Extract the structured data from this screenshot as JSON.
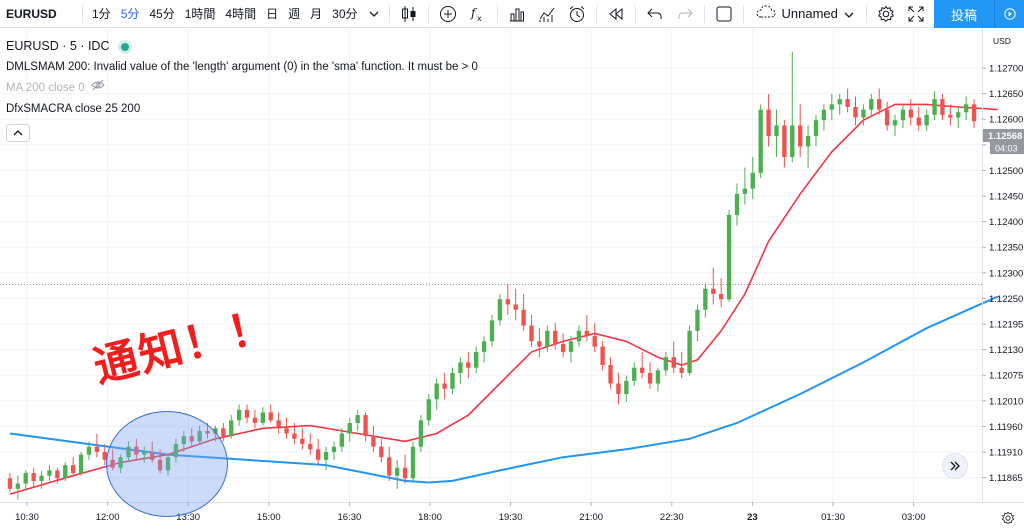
{
  "toolbar": {
    "symbol": "EURUSD",
    "intervals": [
      {
        "label": "1分",
        "active": false
      },
      {
        "label": "5分",
        "active": true
      },
      {
        "label": "45分",
        "active": false
      },
      {
        "label": "1時間",
        "active": false
      },
      {
        "label": "4時間",
        "active": false
      },
      {
        "label": "日",
        "active": false
      },
      {
        "label": "週",
        "active": false
      },
      {
        "label": "月",
        "active": false
      }
    ],
    "custom_interval": "30分",
    "layout_name": "Unnamed",
    "publish_label": "投稿",
    "icons": [
      "chevron-down-icon",
      "candlestick-icon",
      "add-indicator-icon",
      "fx-icon",
      "bar-chart-icon",
      "compare-icon",
      "alert-clock-icon",
      "replay-icon",
      "undo-icon",
      "redo-icon",
      "fullscreen-rect-icon",
      "cloud-icon",
      "gear-icon",
      "expand-icon",
      "camera-icon",
      "triangle-down-icon"
    ]
  },
  "legend": {
    "symbol_line": "EURUSD · 5 · IDC",
    "indicator_1": "DMLSMAM 200: Invalid value of the 'length' argument (0) in the 'sma' function. It must be > 0",
    "indicator_2": "MA 200 close 0",
    "indicator_3": "DfxSMACRA close 25 200"
  },
  "price_axis": {
    "currency": "USD",
    "labels": [
      "1.12700",
      "1.12650",
      "1.12600",
      "1.12550",
      "1.12500",
      "1.12450",
      "1.12400",
      "1.12350",
      "1.12300",
      "1.12250",
      "1.12195",
      "1.12130",
      "1.12075",
      "1.12010",
      "1.11960",
      "1.11910",
      "1.11865"
    ],
    "current_price": "1.12568",
    "countdown": "04:03"
  },
  "time_axis": {
    "labels": [
      "10:30",
      "12:00",
      "13:30",
      "15:00",
      "16:30",
      "18:00",
      "19:30",
      "21:00",
      "22:30",
      "23",
      "01:30",
      "03:00"
    ]
  },
  "annotation": {
    "text": "通知！！"
  },
  "colors": {
    "up": "#26a69a",
    "up_candle": "#4caf50",
    "down": "#ef5350",
    "ma_short": "#f23645",
    "ma_long": "#2196f3",
    "accent": "#2962ff",
    "annotation": "#f21d1d"
  },
  "chart_data": {
    "type": "candlestick",
    "ylim": [
      1.11845,
      1.12745
    ],
    "price_line": 1.12258,
    "bars": [
      [
        1.1189,
        1.119,
        1.11865,
        1.1187
      ],
      [
        1.1187,
        1.11895,
        1.1185,
        1.1188
      ],
      [
        1.1188,
        1.11905,
        1.1187,
        1.119
      ],
      [
        1.119,
        1.1191,
        1.11875,
        1.11885
      ],
      [
        1.11885,
        1.11905,
        1.1187,
        1.11895
      ],
      [
        1.11895,
        1.11915,
        1.11885,
        1.11905
      ],
      [
        1.11905,
        1.1191,
        1.1188,
        1.1189
      ],
      [
        1.1189,
        1.1192,
        1.11885,
        1.11915
      ],
      [
        1.11915,
        1.1193,
        1.11895,
        1.119
      ],
      [
        1.119,
        1.1194,
        1.11895,
        1.11935
      ],
      [
        1.11935,
        1.1196,
        1.11925,
        1.1195
      ],
      [
        1.1195,
        1.11975,
        1.1193,
        1.1194
      ],
      [
        1.1194,
        1.11955,
        1.11915,
        1.11925
      ],
      [
        1.11925,
        1.11945,
        1.11905,
        1.1191
      ],
      [
        1.1191,
        1.11935,
        1.119,
        1.1193
      ],
      [
        1.1193,
        1.1196,
        1.1192,
        1.1195
      ],
      [
        1.1195,
        1.11965,
        1.11925,
        1.11935
      ],
      [
        1.11935,
        1.1195,
        1.1192,
        1.1194
      ],
      [
        1.1194,
        1.1196,
        1.1192,
        1.11925
      ],
      [
        1.11925,
        1.11945,
        1.119,
        1.11905
      ],
      [
        1.11905,
        1.11935,
        1.11895,
        1.1193
      ],
      [
        1.1193,
        1.11965,
        1.1192,
        1.11955
      ],
      [
        1.11955,
        1.1198,
        1.1194,
        1.1197
      ],
      [
        1.1197,
        1.11985,
        1.1195,
        1.1196
      ],
      [
        1.1196,
        1.1199,
        1.11955,
        1.1198
      ],
      [
        1.1198,
        1.11995,
        1.11965,
        1.11975
      ],
      [
        1.11975,
        1.1199,
        1.1196,
        1.11985
      ],
      [
        1.11985,
        1.11995,
        1.1196,
        1.1197
      ],
      [
        1.1197,
        1.1201,
        1.11965,
        1.12
      ],
      [
        1.12,
        1.1203,
        1.1199,
        1.1202
      ],
      [
        1.1202,
        1.1203,
        1.11995,
        1.12005
      ],
      [
        1.12005,
        1.1202,
        1.11985,
        1.11995
      ],
      [
        1.11995,
        1.12025,
        1.1199,
        1.12015
      ],
      [
        1.12015,
        1.1203,
        1.11995,
        1.12
      ],
      [
        1.12,
        1.12015,
        1.11975,
        1.11985
      ],
      [
        1.11985,
        1.12005,
        1.11965,
        1.11975
      ],
      [
        1.11975,
        1.11995,
        1.11955,
        1.11965
      ],
      [
        1.11965,
        1.11985,
        1.11945,
        1.11955
      ],
      [
        1.11955,
        1.11975,
        1.11935,
        1.11945
      ],
      [
        1.11945,
        1.11965,
        1.11915,
        1.11925
      ],
      [
        1.11925,
        1.1195,
        1.11905,
        1.1194
      ],
      [
        1.1194,
        1.1196,
        1.11925,
        1.1195
      ],
      [
        1.1195,
        1.11985,
        1.1194,
        1.11975
      ],
      [
        1.11975,
        1.12005,
        1.1196,
        1.11995
      ],
      [
        1.11995,
        1.1202,
        1.1198,
        1.1201
      ],
      [
        1.1201,
        1.12015,
        1.1196,
        1.1197
      ],
      [
        1.1197,
        1.1199,
        1.1194,
        1.1195
      ],
      [
        1.1195,
        1.11965,
        1.1192,
        1.1193
      ],
      [
        1.1193,
        1.1195,
        1.11885,
        1.11895
      ],
      [
        1.11895,
        1.11925,
        1.1187,
        1.1191
      ],
      [
        1.1191,
        1.11935,
        1.1188,
        1.1189
      ],
      [
        1.1189,
        1.1196,
        1.11885,
        1.1195
      ],
      [
        1.1195,
        1.1201,
        1.1194,
        1.12
      ],
      [
        1.12,
        1.1205,
        1.1199,
        1.1204
      ],
      [
        1.1204,
        1.1208,
        1.1202,
        1.1207
      ],
      [
        1.1207,
        1.1209,
        1.1204,
        1.1206
      ],
      [
        1.1206,
        1.121,
        1.1205,
        1.1209
      ],
      [
        1.1209,
        1.1212,
        1.1207,
        1.1211
      ],
      [
        1.1211,
        1.1213,
        1.1208,
        1.121
      ],
      [
        1.121,
        1.1214,
        1.1209,
        1.1213
      ],
      [
        1.1213,
        1.1216,
        1.1211,
        1.1215
      ],
      [
        1.1215,
        1.122,
        1.1214,
        1.1219
      ],
      [
        1.1219,
        1.1224,
        1.1218,
        1.1223
      ],
      [
        1.1223,
        1.1226,
        1.122,
        1.1222
      ],
      [
        1.1222,
        1.1225,
        1.1219,
        1.1221
      ],
      [
        1.1221,
        1.1224,
        1.1217,
        1.1218
      ],
      [
        1.1218,
        1.122,
        1.1214,
        1.1215
      ],
      [
        1.1215,
        1.12175,
        1.1212,
        1.1214
      ],
      [
        1.1214,
        1.1218,
        1.1213,
        1.1217
      ],
      [
        1.1217,
        1.12185,
        1.12135,
        1.12145
      ],
      [
        1.12145,
        1.12165,
        1.1212,
        1.1213
      ],
      [
        1.1213,
        1.1216,
        1.1211,
        1.1215
      ],
      [
        1.1215,
        1.1218,
        1.1214,
        1.1217
      ],
      [
        1.1217,
        1.122,
        1.1215,
        1.1216
      ],
      [
        1.1216,
        1.12185,
        1.1213,
        1.1214
      ],
      [
        1.1214,
        1.1215,
        1.12095,
        1.12105
      ],
      [
        1.12105,
        1.1212,
        1.1206,
        1.1207
      ],
      [
        1.1207,
        1.1209,
        1.1203,
        1.1205
      ],
      [
        1.1205,
        1.12085,
        1.12035,
        1.12075
      ],
      [
        1.12075,
        1.1211,
        1.12065,
        1.121
      ],
      [
        1.121,
        1.1213,
        1.1208,
        1.1209
      ],
      [
        1.1209,
        1.1211,
        1.1206,
        1.1207
      ],
      [
        1.1207,
        1.121,
        1.12055,
        1.12095
      ],
      [
        1.12095,
        1.1213,
        1.12085,
        1.1212
      ],
      [
        1.1212,
        1.1215,
        1.1209,
        1.121
      ],
      [
        1.121,
        1.1213,
        1.1208,
        1.1209
      ],
      [
        1.1209,
        1.1218,
        1.12085,
        1.1217
      ],
      [
        1.1217,
        1.1222,
        1.1215,
        1.1221
      ],
      [
        1.1221,
        1.1226,
        1.12195,
        1.1225
      ],
      [
        1.1225,
        1.1229,
        1.1222,
        1.1224
      ],
      [
        1.1224,
        1.1227,
        1.12215,
        1.1223
      ],
      [
        1.1223,
        1.124,
        1.12225,
        1.1239
      ],
      [
        1.1239,
        1.1245,
        1.1237,
        1.1243
      ],
      [
        1.1243,
        1.1248,
        1.1241,
        1.1244
      ],
      [
        1.1244,
        1.125,
        1.1242,
        1.1247
      ],
      [
        1.1247,
        1.126,
        1.1246,
        1.1259
      ],
      [
        1.1259,
        1.1262,
        1.1252,
        1.1254
      ],
      [
        1.1254,
        1.1259,
        1.125,
        1.1256
      ],
      [
        1.1256,
        1.1257,
        1.1248,
        1.125
      ],
      [
        1.125,
        1.127,
        1.1249,
        1.1256
      ],
      [
        1.1256,
        1.126,
        1.125,
        1.1252
      ],
      [
        1.1252,
        1.1256,
        1.1248,
        1.1254
      ],
      [
        1.1254,
        1.1258,
        1.1252,
        1.1257
      ],
      [
        1.1257,
        1.126,
        1.1255,
        1.1259
      ],
      [
        1.1259,
        1.1262,
        1.1257,
        1.126
      ],
      [
        1.126,
        1.1262,
        1.1258,
        1.1261
      ],
      [
        1.1261,
        1.1263,
        1.12585,
        1.12595
      ],
      [
        1.12595,
        1.12615,
        1.1256,
        1.12575
      ],
      [
        1.12575,
        1.126,
        1.1256,
        1.1259
      ],
      [
        1.1259,
        1.1262,
        1.12575,
        1.1261
      ],
      [
        1.1261,
        1.1263,
        1.1258,
        1.1259
      ],
      [
        1.1259,
        1.12605,
        1.1255,
        1.1256
      ],
      [
        1.1256,
        1.1258,
        1.1254,
        1.1257
      ],
      [
        1.1257,
        1.126,
        1.12555,
        1.1259
      ],
      [
        1.1259,
        1.1261,
        1.1256,
        1.12575
      ],
      [
        1.12575,
        1.12595,
        1.1255,
        1.1256
      ],
      [
        1.1256,
        1.1259,
        1.1255,
        1.1258
      ],
      [
        1.1258,
        1.12625,
        1.1257,
        1.1261
      ],
      [
        1.1261,
        1.1262,
        1.1257,
        1.1258
      ],
      [
        1.1258,
        1.126,
        1.1256,
        1.12575
      ],
      [
        1.12575,
        1.12595,
        1.12555,
        1.12585
      ],
      [
        1.12585,
        1.12615,
        1.1257,
        1.126
      ],
      [
        1.126,
        1.1261,
        1.12555,
        1.12568
      ]
    ],
    "ma_short": [
      [
        0,
        1.1186
      ],
      [
        8,
        1.11895
      ],
      [
        14,
        1.1192
      ],
      [
        20,
        1.11935
      ],
      [
        26,
        1.11965
      ],
      [
        32,
        1.11985
      ],
      [
        38,
        1.1199
      ],
      [
        44,
        1.11975
      ],
      [
        50,
        1.1196
      ],
      [
        54,
        1.11975
      ],
      [
        58,
        1.1201
      ],
      [
        62,
        1.1207
      ],
      [
        66,
        1.1213
      ],
      [
        70,
        1.1215
      ],
      [
        74,
        1.12165
      ],
      [
        78,
        1.1215
      ],
      [
        82,
        1.1212
      ],
      [
        85,
        1.12105
      ],
      [
        87,
        1.12115
      ],
      [
        90,
        1.1217
      ],
      [
        93,
        1.1224
      ],
      [
        96,
        1.1234
      ],
      [
        100,
        1.1243
      ],
      [
        104,
        1.1251
      ],
      [
        108,
        1.1257
      ],
      [
        112,
        1.126
      ],
      [
        116,
        1.126
      ],
      [
        120,
        1.12595
      ],
      [
        125,
        1.1259
      ]
    ],
    "ma_long": [
      [
        0,
        1.11975
      ],
      [
        10,
        1.11955
      ],
      [
        20,
        1.11935
      ],
      [
        30,
        1.11925
      ],
      [
        40,
        1.11915
      ],
      [
        45,
        1.119
      ],
      [
        50,
        1.11885
      ],
      [
        53,
        1.11882
      ],
      [
        56,
        1.11885
      ],
      [
        62,
        1.11905
      ],
      [
        70,
        1.1193
      ],
      [
        78,
        1.11945
      ],
      [
        86,
        1.11965
      ],
      [
        92,
        1.11995
      ],
      [
        100,
        1.1205
      ],
      [
        108,
        1.1211
      ],
      [
        116,
        1.12175
      ],
      [
        122,
        1.12215
      ],
      [
        125,
        1.12235
      ]
    ]
  }
}
